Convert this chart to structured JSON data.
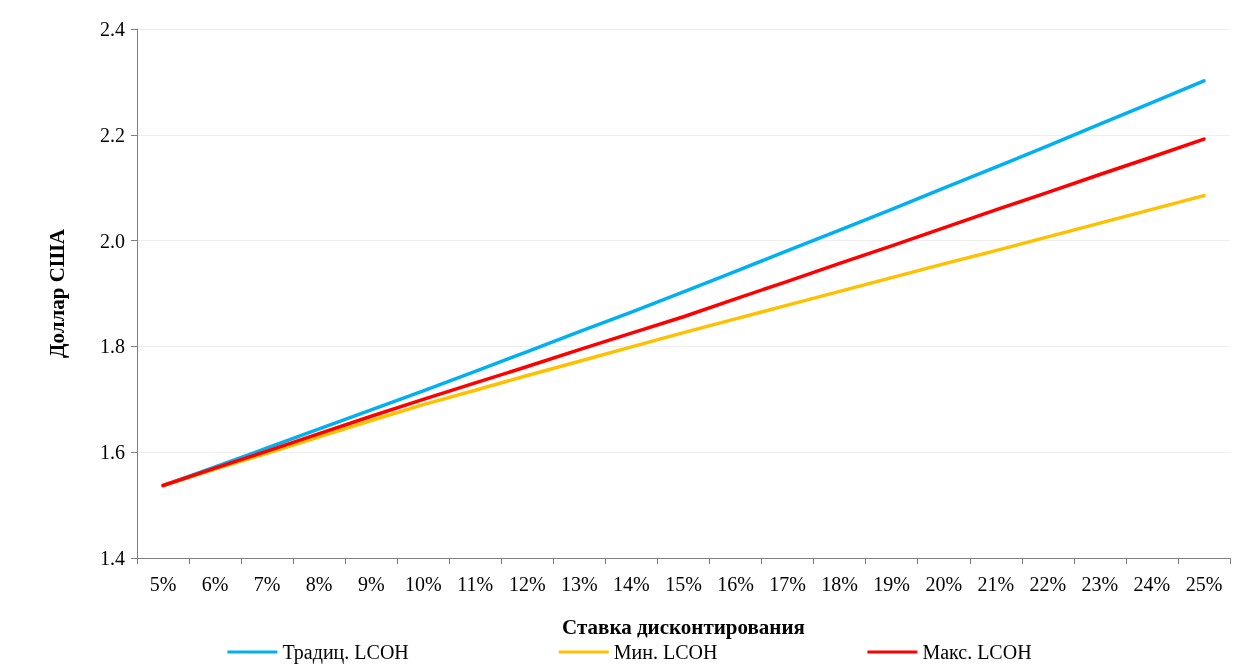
{
  "chart_data": {
    "type": "line",
    "xlabel": "Ставка дисконтирования",
    "ylabel": "Доллар США",
    "categories": [
      "5%",
      "6%",
      "7%",
      "8%",
      "9%",
      "10%",
      "11%",
      "12%",
      "13%",
      "14%",
      "15%",
      "16%",
      "17%",
      "18%",
      "19%",
      "20%",
      "21%",
      "22%",
      "23%",
      "24%",
      "25%"
    ],
    "series": [
      {
        "name": "Традиц. LCOH",
        "color": "#00b0f0",
        "values": [
          1.537,
          1.572,
          1.608,
          1.644,
          1.68,
          1.716,
          1.753,
          1.79,
          1.828,
          1.865,
          1.903,
          1.942,
          1.981,
          2.02,
          2.059,
          2.099,
          2.139,
          2.179,
          2.22,
          2.261,
          2.302
        ]
      },
      {
        "name": "Мин. LCOH",
        "color": "#ffc000",
        "values": [
          1.537,
          1.568,
          1.598,
          1.629,
          1.66,
          1.69,
          1.717,
          1.745,
          1.772,
          1.799,
          1.826,
          1.852,
          1.878,
          1.904,
          1.93,
          1.956,
          1.981,
          2.007,
          2.033,
          2.059,
          2.085
        ]
      },
      {
        "name": "Макс. LCOH",
        "color": "#ff0000",
        "values": [
          1.537,
          1.57,
          1.602,
          1.635,
          1.668,
          1.7,
          1.731,
          1.762,
          1.794,
          1.825,
          1.856,
          1.89,
          1.923,
          1.957,
          1.99,
          2.024,
          2.058,
          2.091,
          2.125,
          2.158,
          2.192
        ]
      }
    ],
    "ylim": [
      1.4,
      2.4
    ],
    "yticks": [
      1.4,
      1.6,
      1.8,
      {
        "value": 2,
        "label": "2.0"
      },
      2.2,
      2.4
    ],
    "grid": "y",
    "legend": "bottom",
    "marker": "none",
    "line_style": "solid"
  }
}
